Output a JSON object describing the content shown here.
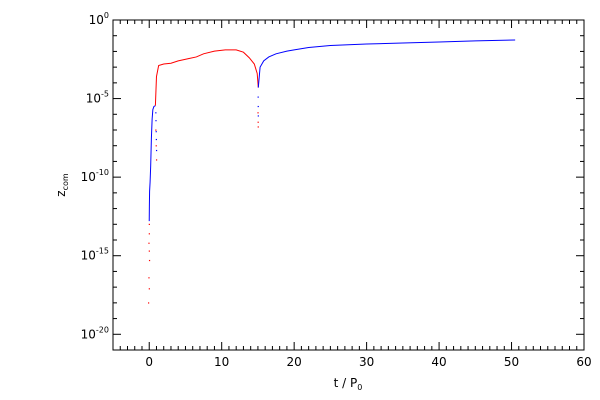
{
  "chart_data": {
    "type": "line",
    "title": "",
    "xlabel": {
      "main": "t / P",
      "subscript": "0"
    },
    "ylabel": {
      "main": "z",
      "subscript": "com"
    },
    "xlim": [
      -5,
      60
    ],
    "ylim_log10": [
      -21,
      0
    ],
    "yscale": "log",
    "grid": false,
    "x_ticks": [
      0,
      10,
      20,
      30,
      40,
      50,
      60
    ],
    "x_tick_labels": [
      "0",
      "10",
      "20",
      "30",
      "40",
      "50",
      "60"
    ],
    "y_ticks": [
      {
        "base": "10",
        "exp": "0",
        "log": 0
      },
      {
        "base": "10",
        "exp": "-5",
        "log": -5
      },
      {
        "base": "10",
        "exp": "-10",
        "log": -10
      },
      {
        "base": "10",
        "exp": "-15",
        "log": -15
      },
      {
        "base": "10",
        "exp": "-20",
        "log": -20
      }
    ],
    "series": [
      {
        "color": "#0000ff",
        "style": "line",
        "points": [
          [
            0.0,
            -12.8
          ],
          [
            0.02,
            -11.8
          ],
          [
            0.05,
            -10.9
          ],
          [
            0.12,
            -10.3
          ],
          [
            0.2,
            -9.3
          ],
          [
            0.3,
            -7.5
          ],
          [
            0.4,
            -6.3
          ],
          [
            0.5,
            -5.7
          ],
          [
            0.65,
            -5.5
          ],
          [
            0.85,
            -5.45
          ]
        ]
      },
      {
        "color": "#ff0000",
        "style": "line",
        "points": [
          [
            0.85,
            -5.45
          ],
          [
            1.0,
            -3.6
          ],
          [
            1.3,
            -2.9
          ],
          [
            2.0,
            -2.8
          ],
          [
            3.0,
            -2.75
          ],
          [
            4.0,
            -2.6
          ],
          [
            5.5,
            -2.45
          ],
          [
            6.5,
            -2.35
          ],
          [
            7.5,
            -2.15
          ],
          [
            9.0,
            -1.98
          ],
          [
            10.5,
            -1.9
          ],
          [
            12.0,
            -1.9
          ],
          [
            13.0,
            -2.05
          ],
          [
            13.8,
            -2.4
          ],
          [
            14.5,
            -2.8
          ],
          [
            14.9,
            -3.4
          ],
          [
            15.05,
            -4.3
          ]
        ]
      },
      {
        "color": "#0000ff",
        "style": "line",
        "points": [
          [
            15.05,
            -4.3
          ],
          [
            15.3,
            -3.0
          ],
          [
            15.8,
            -2.6
          ],
          [
            16.5,
            -2.35
          ],
          [
            17.5,
            -2.15
          ],
          [
            19.0,
            -1.98
          ],
          [
            20.0,
            -1.9
          ],
          [
            22.0,
            -1.75
          ],
          [
            25.0,
            -1.62
          ],
          [
            30.0,
            -1.53
          ],
          [
            35.0,
            -1.46
          ],
          [
            40.0,
            -1.4
          ],
          [
            45.0,
            -1.33
          ],
          [
            50.5,
            -1.27
          ]
        ]
      },
      {
        "color": "#ff0000",
        "style": "points",
        "points": [
          [
            0.0,
            -13.0
          ],
          [
            0.0,
            -13.6
          ],
          [
            -0.05,
            -14.2
          ],
          [
            0.0,
            -14.7
          ],
          [
            0.03,
            -15.3
          ],
          [
            -0.05,
            -16.4
          ],
          [
            -0.1,
            -18.0
          ],
          [
            0.0,
            -17.1
          ]
        ]
      },
      {
        "color": "#0000ff",
        "style": "points",
        "points": [
          [
            0.9,
            -5.9
          ],
          [
            0.92,
            -6.4
          ],
          [
            0.95,
            -7.1
          ],
          [
            0.97,
            -7.6
          ],
          [
            1.0,
            -8.3
          ],
          [
            15.02,
            -4.9
          ],
          [
            15.03,
            -5.5
          ],
          [
            15.04,
            -6.1
          ]
        ]
      },
      {
        "color": "#ff0000",
        "style": "points",
        "points": [
          [
            0.9,
            -7.0
          ],
          [
            0.95,
            -8.0
          ],
          [
            1.0,
            -8.9
          ],
          [
            15.0,
            -5.9
          ],
          [
            15.02,
            -6.5
          ],
          [
            15.03,
            -6.8
          ]
        ]
      }
    ]
  }
}
